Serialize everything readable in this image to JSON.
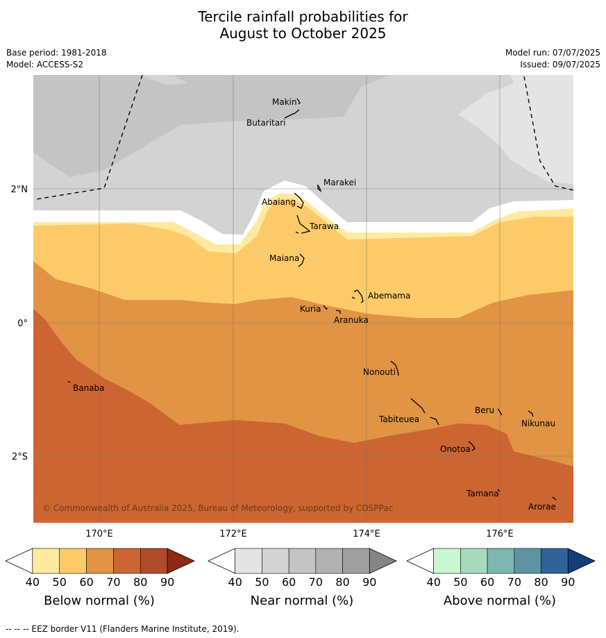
{
  "header": {
    "title_line1": "Tercile rainfall probabilities for",
    "title_line2": "August to October 2025",
    "base_period": "Base period: 1981-2018",
    "model": "Model: ACCESS-S2",
    "model_run": "Model run: 07/07/2025",
    "issued": "Issued: 09/07/2025"
  },
  "map": {
    "copyright": "© Commonwealth of Australia 2025, Bureau of Meteorology, supported by COSPPac",
    "lat_labels": [
      "2°N",
      "0°",
      "2°S"
    ],
    "lon_labels": [
      "170°E",
      "172°E",
      "174°E",
      "176°E"
    ],
    "places": [
      "Makin",
      "Butaritari",
      "Marakei",
      "Abaiang",
      "Tarawa",
      "Maiana",
      "Abemama",
      "Kuria",
      "Aranuka",
      "Banaba",
      "Nonouti",
      "Tabiteuea",
      "Beru",
      "Nikunau",
      "Onotoa",
      "Tamana",
      "Arorae"
    ]
  },
  "legends": [
    {
      "title": "Below normal (%)",
      "ticks": [
        "40",
        "50",
        "60",
        "70",
        "80",
        "90"
      ],
      "colors": [
        "#ffffff",
        "#ffeaa0",
        "#fdca6a",
        "#e09444",
        "#cc6531",
        "#b04a28",
        "#8e2a14"
      ]
    },
    {
      "title": "Near normal (%)",
      "ticks": [
        "40",
        "50",
        "60",
        "70",
        "80",
        "90"
      ],
      "colors": [
        "#ffffff",
        "#e4e4e4",
        "#d3d3d3",
        "#c3c3c3",
        "#b1b1b1",
        "#a0a0a0",
        "#858585"
      ]
    },
    {
      "title": "Above normal (%)",
      "ticks": [
        "40",
        "50",
        "60",
        "70",
        "80",
        "90"
      ],
      "colors": [
        "#ffffff",
        "#c8f7d0",
        "#a6dabd",
        "#7fb7b0",
        "#5e93a1",
        "#2f6298",
        "#123e78"
      ]
    }
  ],
  "footnote": "--  --  -- EEZ border V11 (Flanders Marine Institute, 2019)."
}
